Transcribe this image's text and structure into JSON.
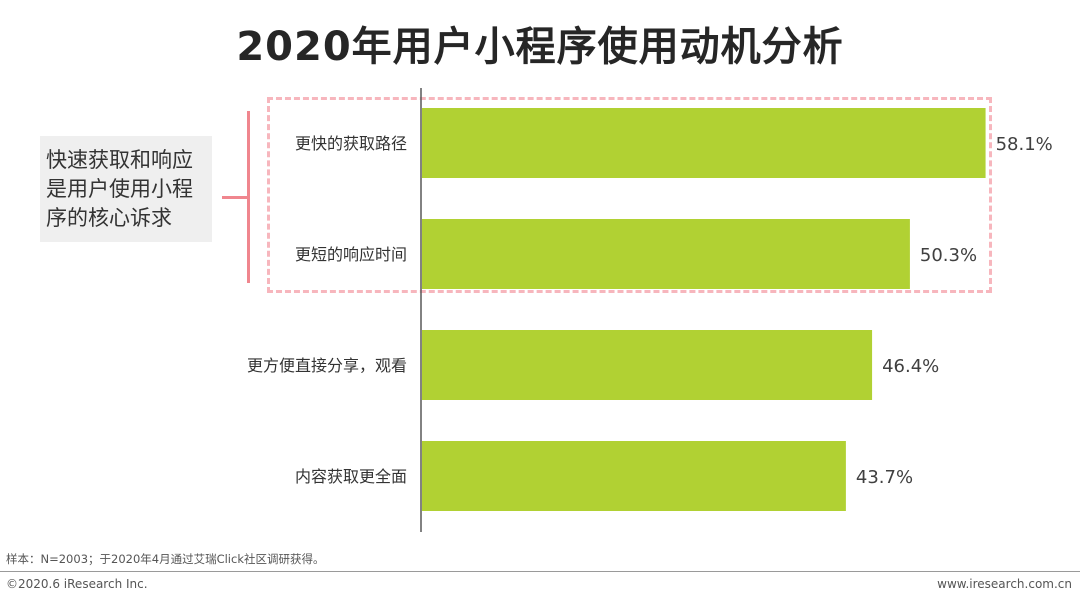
{
  "title": "2020年用户小程序使用动机分析",
  "callout": {
    "text": "快速获取和响应是用户使用小程序的核心诉求"
  },
  "chart_data": {
    "type": "bar",
    "orientation": "horizontal",
    "categories": [
      "更快的获取路径",
      "更短的响应时间",
      "更方便直接分享，观看",
      "内容获取更全面"
    ],
    "values": [
      58.1,
      50.3,
      46.4,
      43.7
    ],
    "value_labels": [
      "58.1%",
      "50.3%",
      "46.4%",
      "43.7%"
    ],
    "unit": "%",
    "xlim": [
      0,
      60
    ],
    "bar_color": "#b1d133",
    "highlight_color": "#f7b6bd",
    "grid": false,
    "legend": "none"
  },
  "footer": {
    "note": "样本：N=2003；于2020年4月通过艾瑞Click社区调研获得。",
    "copyright": "©2020.6 iResearch Inc.",
    "website": "www.iresearch.com.cn"
  }
}
